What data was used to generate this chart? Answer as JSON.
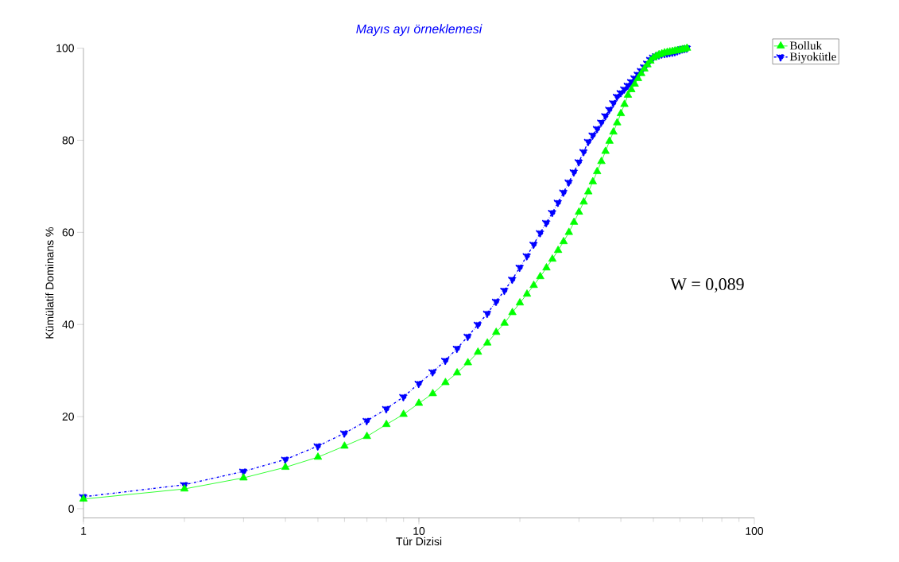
{
  "chart_data": {
    "type": "line",
    "title": "Mayıs ayı örneklemesi",
    "xlabel": "Tür Dizisi",
    "ylabel": "Kümülatif Dominans %",
    "x": [
      1,
      2,
      3,
      4,
      5,
      6,
      7,
      8,
      9,
      10,
      11,
      12,
      13,
      14,
      15,
      16,
      17,
      18,
      19,
      20,
      21,
      22,
      23,
      24,
      25,
      26,
      27,
      28,
      29,
      30,
      31,
      32,
      33,
      34,
      35,
      36,
      37,
      38,
      39,
      40,
      41,
      42,
      43,
      44,
      45,
      46,
      47,
      48,
      49,
      50,
      51,
      52,
      53,
      54,
      55,
      56,
      57,
      58,
      59,
      60,
      61,
      62,
      63
    ],
    "series": [
      {
        "name": "Bolluk",
        "color": "#00ff00",
        "marker": "triangle",
        "line_style": "solid",
        "values": [
          2.1,
          4.3,
          6.7,
          9.0,
          11.2,
          13.6,
          15.7,
          18.3,
          20.5,
          22.9,
          25.0,
          27.4,
          29.5,
          31.7,
          34.0,
          36.0,
          38.3,
          40.3,
          42.6,
          44.7,
          46.6,
          48.5,
          50.4,
          52.3,
          54.2,
          56.1,
          58.0,
          60.0,
          62.2,
          64.4,
          66.6,
          68.8,
          71.0,
          73.2,
          75.4,
          77.6,
          79.8,
          81.8,
          83.8,
          85.8,
          87.8,
          89.8,
          91.0,
          92.2,
          93.4,
          94.5,
          95.5,
          96.4,
          97.2,
          97.9,
          98.3,
          98.6,
          98.8,
          99.0,
          99.1,
          99.2,
          99.3,
          99.4,
          99.5,
          99.6,
          99.7,
          99.8,
          100
        ]
      },
      {
        "name": "Biyokütle",
        "color": "#0000ff",
        "marker": "triangle-down",
        "line_style": "dashed",
        "values": [
          2.6,
          5.2,
          8.1,
          10.7,
          13.6,
          16.4,
          19.1,
          21.7,
          24.3,
          27.2,
          29.7,
          32.2,
          34.8,
          37.4,
          40.0,
          42.4,
          45.0,
          47.4,
          49.8,
          52.4,
          54.9,
          57.4,
          59.9,
          62.1,
          64.3,
          66.5,
          68.7,
          70.9,
          73.1,
          75.3,
          77.5,
          79.7,
          81.1,
          82.5,
          83.9,
          85.3,
          86.7,
          88.1,
          89.5,
          90.3,
          91.1,
          91.9,
          92.7,
          93.5,
          94.3,
          95.1,
          95.9,
          96.7,
          97.5,
          98.0,
          98.3,
          98.5,
          98.7,
          98.8,
          98.9,
          99.0,
          99.1,
          99.2,
          99.4,
          99.6,
          99.8,
          99.9,
          100
        ]
      }
    ],
    "log": "x",
    "xlim": [
      1,
      100
    ],
    "xticks": [
      1,
      10,
      100
    ],
    "ylim": [
      -2,
      100
    ],
    "yticks": [
      0,
      20,
      40,
      60,
      80,
      100
    ],
    "grid": false,
    "legend": "top right",
    "annotations": [
      "W = 0,089"
    ]
  }
}
